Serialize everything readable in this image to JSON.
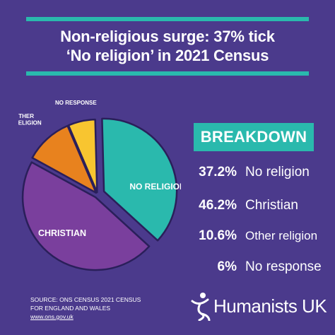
{
  "title": {
    "line1": "Non-religious surge: 37% tick",
    "line2": "‘No religion’ in 2021 Census"
  },
  "breakdown": {
    "heading": "BREAKDOWN",
    "rows": [
      {
        "pct": "37.2%",
        "label": "No religion"
      },
      {
        "pct": "46.2%",
        "label": "Christian"
      },
      {
        "pct": "10.6%",
        "label": "Other religion"
      },
      {
        "pct": "6%",
        "label": "No response"
      }
    ]
  },
  "source": {
    "line1": "SOURCE:  ONS CENSUS 2021 CENSUS",
    "line2": "FOR ENGLAND AND WALES",
    "line3": "www.ons.gov.uk"
  },
  "logo": {
    "text": "Humanists UK",
    "icon": "humanist-figure-icon"
  },
  "colors": {
    "background": "#4b3a8c",
    "accent": "#2ab9ad",
    "no_religion": "#2ab9ad",
    "christian": "#7a3f9d",
    "other_religion": "#e8821e",
    "no_response": "#f8c530"
  },
  "chart_data": {
    "type": "pie",
    "exploded": true,
    "slices": [
      {
        "label": "NO RELIGION",
        "value": 37.2,
        "color": "#2ab9ad"
      },
      {
        "label": "CHRISTIAN",
        "value": 46.2,
        "color": "#7a3f9d"
      },
      {
        "label": "OTHER RELIGION",
        "value": 10.6,
        "color": "#e8821e"
      },
      {
        "label": "NO RESPONSE",
        "value": 6,
        "color": "#f8c530"
      }
    ]
  }
}
